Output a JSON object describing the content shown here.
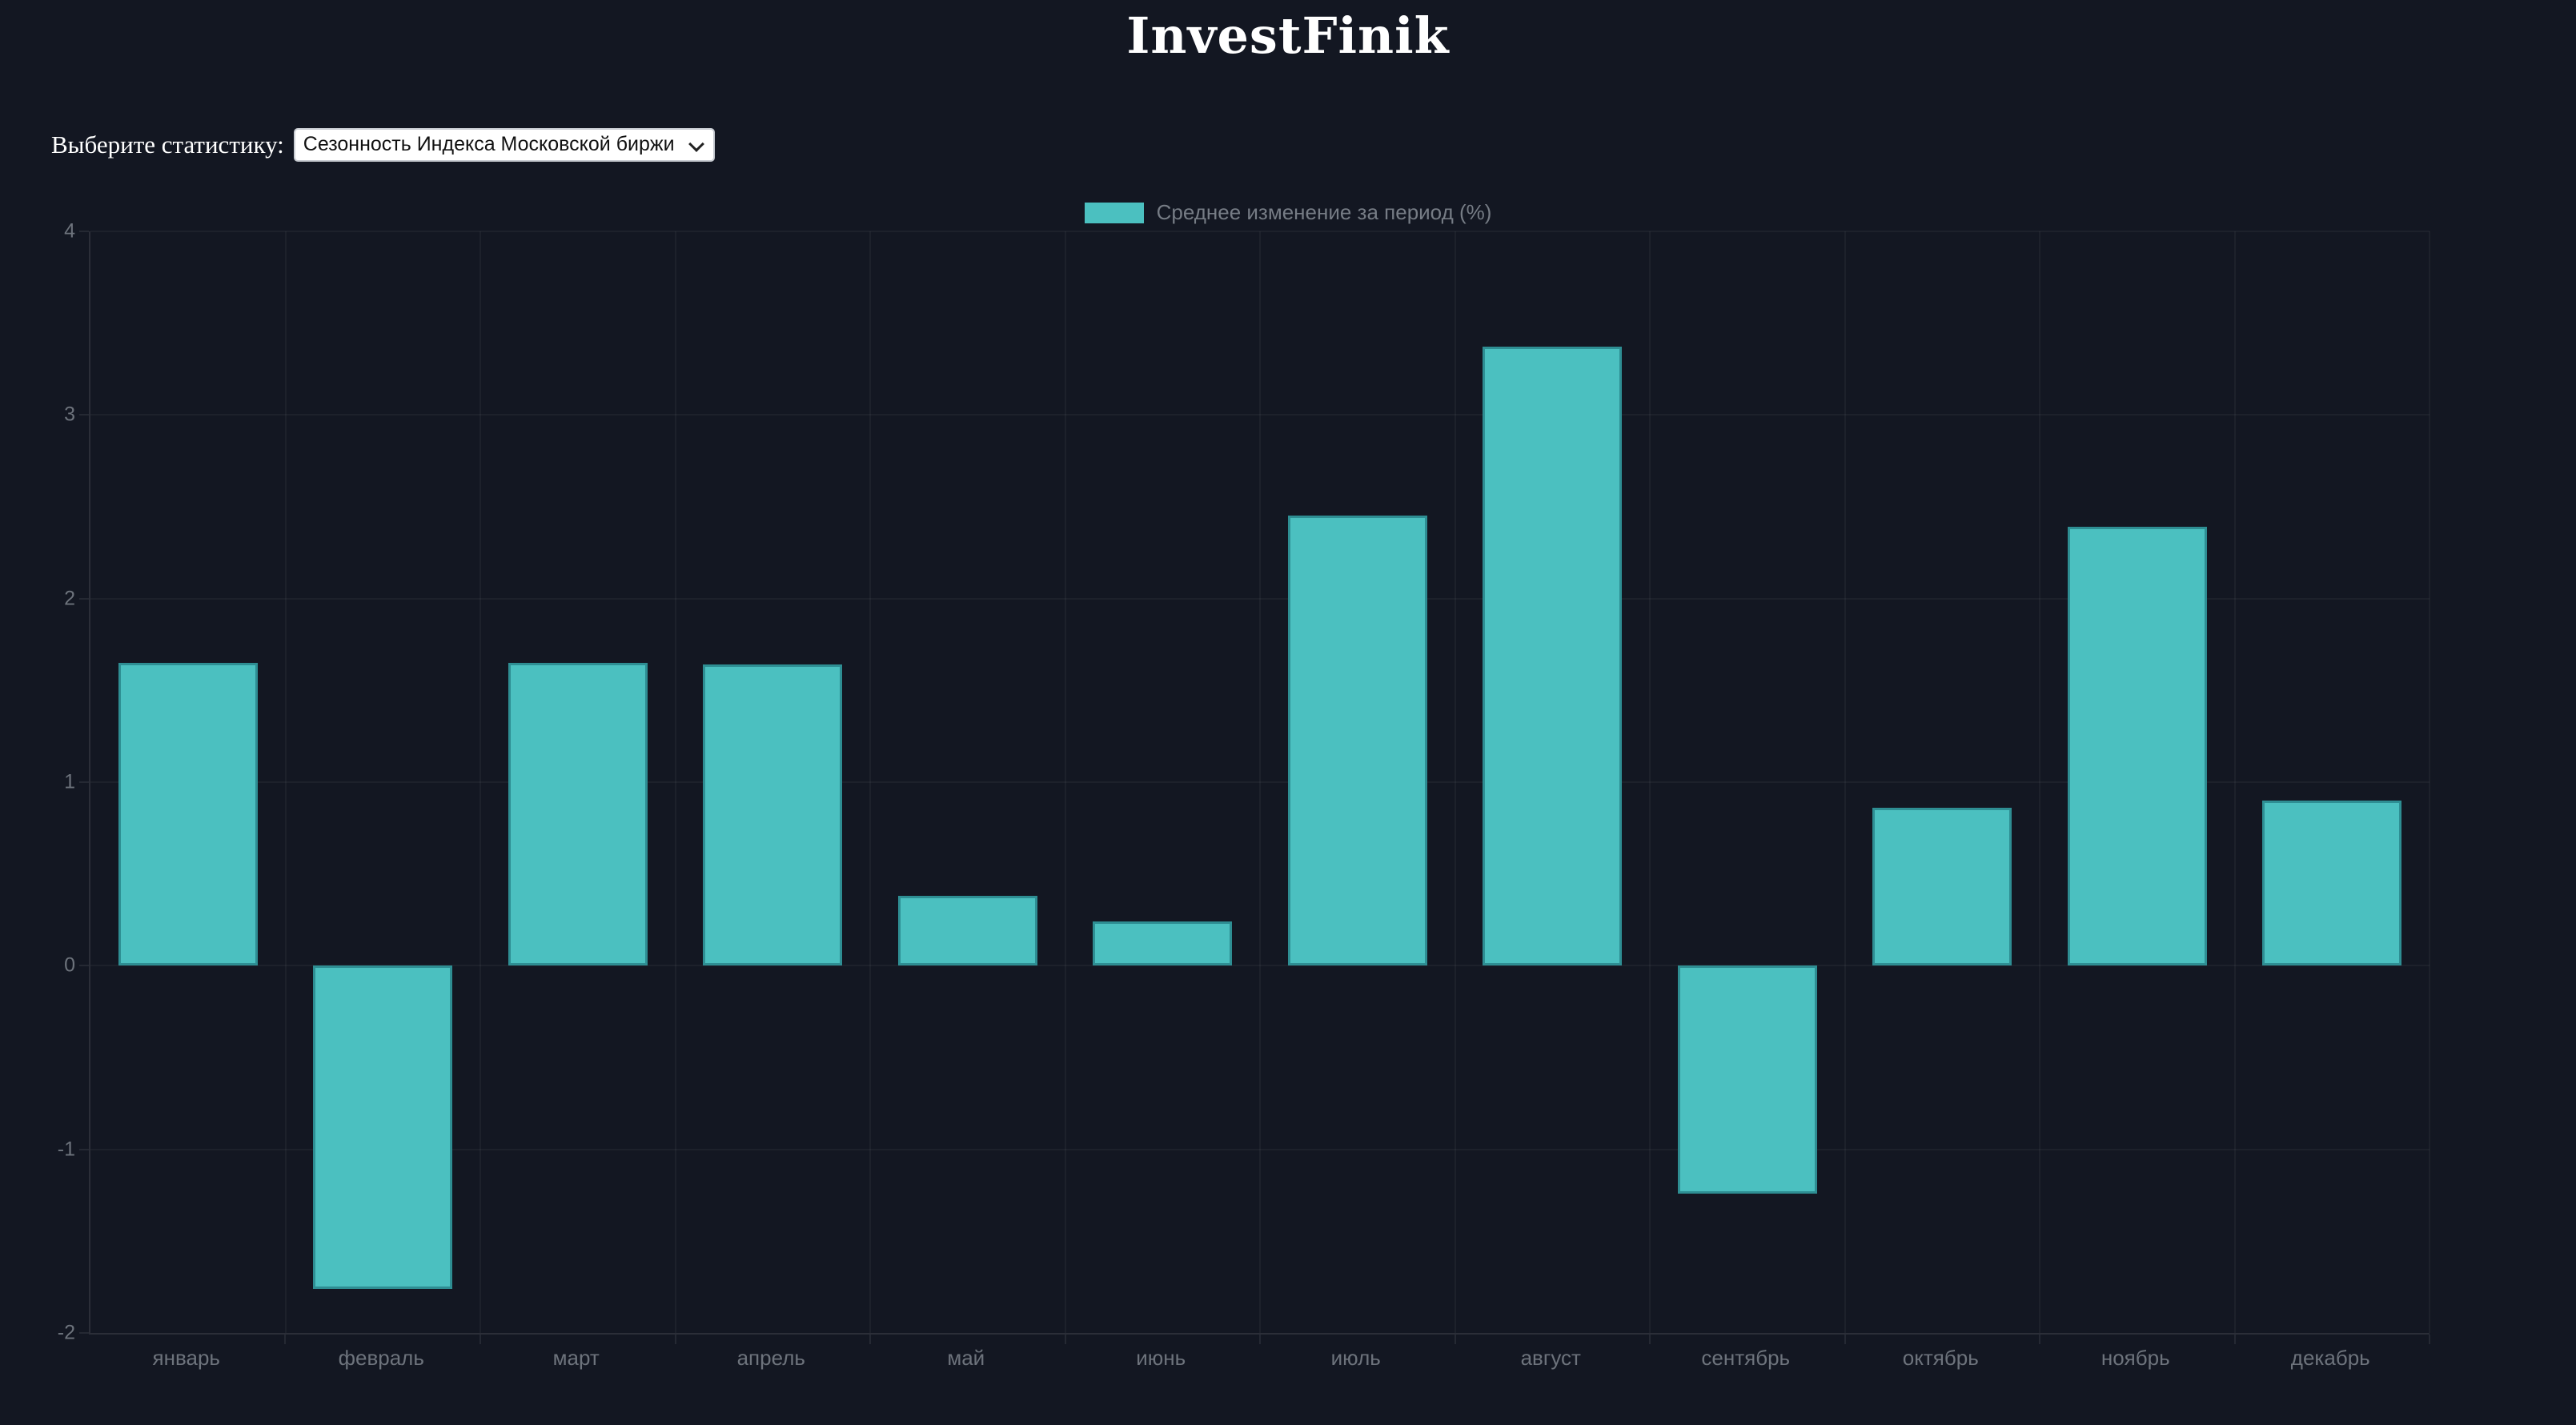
{
  "header": {
    "title": "InvestFinik"
  },
  "controls": {
    "label": "Выберите статистику:",
    "select": {
      "value": "Сезонность Индекса Московской биржи",
      "options": [
        "Сезонность Индекса Московской биржи"
      ]
    }
  },
  "colors": {
    "background": "#131722",
    "bar_fill": "#4bc0c0",
    "bar_border": "#2e8e93",
    "grid": "rgba(255,255,255,0.045)",
    "tick_text": "#6d737c",
    "legend_text": "#767c85",
    "title_text": "#ffffff"
  },
  "chart_data": {
    "type": "bar",
    "title": "",
    "legend_position": "top",
    "grid": true,
    "categories": [
      "январь",
      "февраль",
      "март",
      "апрель",
      "май",
      "июнь",
      "июль",
      "август",
      "сентябрь",
      "октябрь",
      "ноябрь",
      "декабрь"
    ],
    "series": [
      {
        "name": "Среднее изменение за период (%)",
        "values": [
          1.65,
          -1.76,
          1.65,
          1.64,
          0.38,
          0.24,
          2.45,
          3.37,
          -1.24,
          0.86,
          2.39,
          0.9
        ]
      }
    ],
    "xlabel": "",
    "ylabel": "",
    "ylim": [
      -2,
      4
    ],
    "yticks": [
      4,
      3,
      2,
      1,
      0,
      -1,
      -2
    ]
  }
}
